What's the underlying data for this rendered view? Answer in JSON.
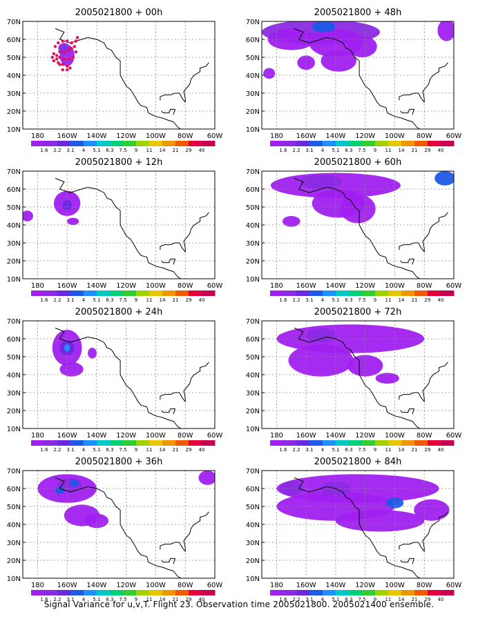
{
  "footer": "Signal Variance for u,v,T. Flight 23. Observation time 2005021800. 2005021400 ensemble.",
  "map": {
    "lat_labels": [
      "70N",
      "60N",
      "50N",
      "40N",
      "30N",
      "20N",
      "10N"
    ],
    "lon_labels": [
      "180",
      "160W",
      "140W",
      "120W",
      "100W",
      "80W",
      "60W"
    ],
    "lon_range": [
      -190,
      -60
    ],
    "lat_range": [
      10,
      70
    ]
  },
  "colorbar": {
    "labels": [
      "1.6",
      "2.2",
      "3.1",
      "4",
      "5.1",
      "6.3",
      "7.5",
      "9",
      "11",
      "14",
      "21",
      "29",
      "40"
    ],
    "colors": [
      "#a020f0",
      "#8a2be2",
      "#6a28e0",
      "#1e5ae6",
      "#1e90ff",
      "#00c8c8",
      "#00d078",
      "#32cd32",
      "#a0d200",
      "#e6c800",
      "#f09600",
      "#f05a00",
      "#e6003c",
      "#c80050"
    ]
  },
  "panels": [
    {
      "title": "2005021800 + 00h",
      "blobs": [
        {
          "lon": -160,
          "lat": 51,
          "rx": 5,
          "ry": 6,
          "c": 0
        },
        {
          "lon": -162,
          "lat": 55,
          "rx": 4,
          "ry": 3,
          "c": 1
        }
      ],
      "dots": [
        [
          -168,
          56
        ],
        [
          -166,
          58
        ],
        [
          -163,
          59
        ],
        [
          -160,
          59
        ],
        [
          -157,
          58
        ],
        [
          -155,
          56
        ],
        [
          -154,
          53
        ],
        [
          -156,
          50
        ],
        [
          -159,
          49
        ],
        [
          -162,
          49
        ],
        [
          -165,
          50
        ],
        [
          -167,
          51
        ],
        [
          -169,
          52
        ],
        [
          -170,
          50
        ],
        [
          -169,
          48
        ],
        [
          -166,
          47
        ],
        [
          -163,
          46
        ],
        [
          -160,
          45
        ],
        [
          -158,
          44
        ],
        [
          -160,
          43
        ],
        [
          -163,
          43
        ],
        [
          -165,
          46
        ],
        [
          -167,
          49
        ],
        [
          -165,
          53
        ],
        [
          -162,
          53
        ],
        [
          -159,
          54
        ],
        [
          -157,
          55
        ],
        [
          -154,
          59
        ],
        [
          -153,
          61
        ]
      ]
    },
    {
      "title": "2005021800 + 48h",
      "blobs": [
        {
          "lon": -150,
          "lat": 64,
          "rx": 40,
          "ry": 7,
          "c": 1
        },
        {
          "lon": -170,
          "lat": 60,
          "rx": 16,
          "ry": 6,
          "c": 0
        },
        {
          "lon": -140,
          "lat": 58,
          "rx": 18,
          "ry": 8,
          "c": 0
        },
        {
          "lon": -138,
          "lat": 48,
          "rx": 12,
          "ry": 6,
          "c": 0
        },
        {
          "lon": -160,
          "lat": 47,
          "rx": 6,
          "ry": 4,
          "c": 0
        },
        {
          "lon": -148,
          "lat": 67,
          "rx": 8,
          "ry": 3,
          "c": 3
        },
        {
          "lon": -122,
          "lat": 56,
          "rx": 10,
          "ry": 6,
          "c": 0
        },
        {
          "lon": -185,
          "lat": 41,
          "rx": 4,
          "ry": 3,
          "c": 0
        },
        {
          "lon": -65,
          "lat": 65,
          "rx": 6,
          "ry": 6,
          "c": 0
        }
      ],
      "dots": []
    },
    {
      "title": "2005021800 + 12h",
      "blobs": [
        {
          "lon": -160,
          "lat": 52,
          "rx": 9,
          "ry": 7,
          "c": 0
        },
        {
          "lon": -160,
          "lat": 51,
          "rx": 3,
          "ry": 3,
          "c": 2
        },
        {
          "lon": -156,
          "lat": 42,
          "rx": 4,
          "ry": 2,
          "c": 0
        },
        {
          "lon": -187,
          "lat": 45,
          "rx": 4,
          "ry": 3,
          "c": 0
        }
      ],
      "dots": []
    },
    {
      "title": "2005021800 + 60h",
      "blobs": [
        {
          "lon": -140,
          "lat": 62,
          "rx": 44,
          "ry": 7,
          "c": 0
        },
        {
          "lon": -150,
          "lat": 64,
          "rx": 14,
          "ry": 4,
          "c": 1
        },
        {
          "lon": -138,
          "lat": 52,
          "rx": 18,
          "ry": 8,
          "c": 0
        },
        {
          "lon": -125,
          "lat": 49,
          "rx": 12,
          "ry": 8,
          "c": 0
        },
        {
          "lon": -170,
          "lat": 42,
          "rx": 6,
          "ry": 3,
          "c": 0
        },
        {
          "lon": -66,
          "lat": 66,
          "rx": 7,
          "ry": 4,
          "c": 3
        }
      ],
      "dots": []
    },
    {
      "title": "2005021800 + 24h",
      "blobs": [
        {
          "lon": -160,
          "lat": 55,
          "rx": 10,
          "ry": 10,
          "c": 0
        },
        {
          "lon": -160,
          "lat": 55,
          "rx": 5,
          "ry": 4,
          "c": 2
        },
        {
          "lon": -160,
          "lat": 55,
          "rx": 2,
          "ry": 2,
          "c": 4
        },
        {
          "lon": -157,
          "lat": 43,
          "rx": 8,
          "ry": 4,
          "c": 0
        },
        {
          "lon": -143,
          "lat": 52,
          "rx": 3,
          "ry": 3,
          "c": 0
        }
      ],
      "dots": []
    },
    {
      "title": "2005021800 + 72h",
      "blobs": [
        {
          "lon": -130,
          "lat": 60,
          "rx": 50,
          "ry": 8,
          "c": 0
        },
        {
          "lon": -150,
          "lat": 48,
          "rx": 22,
          "ry": 9,
          "c": 0
        },
        {
          "lon": -120,
          "lat": 45,
          "rx": 12,
          "ry": 6,
          "c": 0
        },
        {
          "lon": -105,
          "lat": 38,
          "rx": 8,
          "ry": 3,
          "c": 0
        },
        {
          "lon": -150,
          "lat": 62,
          "rx": 10,
          "ry": 4,
          "c": 1
        }
      ],
      "dots": []
    },
    {
      "title": "2005021800 + 36h",
      "blobs": [
        {
          "lon": -160,
          "lat": 60,
          "rx": 20,
          "ry": 8,
          "c": 0
        },
        {
          "lon": -158,
          "lat": 62,
          "rx": 8,
          "ry": 4,
          "c": 1
        },
        {
          "lon": -155,
          "lat": 63,
          "rx": 3,
          "ry": 2,
          "c": 3
        },
        {
          "lon": -165,
          "lat": 59,
          "rx": 3,
          "ry": 2,
          "c": 3
        },
        {
          "lon": -150,
          "lat": 45,
          "rx": 12,
          "ry": 6,
          "c": 0
        },
        {
          "lon": -140,
          "lat": 42,
          "rx": 8,
          "ry": 4,
          "c": 0
        },
        {
          "lon": -65,
          "lat": 66,
          "rx": 6,
          "ry": 4,
          "c": 0
        }
      ],
      "dots": []
    },
    {
      "title": "2005021800 + 84h",
      "blobs": [
        {
          "lon": -125,
          "lat": 60,
          "rx": 55,
          "ry": 8,
          "c": 0
        },
        {
          "lon": -140,
          "lat": 50,
          "rx": 40,
          "ry": 8,
          "c": 0
        },
        {
          "lon": -110,
          "lat": 42,
          "rx": 30,
          "ry": 6,
          "c": 0
        },
        {
          "lon": -170,
          "lat": 60,
          "rx": 8,
          "ry": 4,
          "c": 1
        },
        {
          "lon": -100,
          "lat": 52,
          "rx": 6,
          "ry": 3,
          "c": 3
        },
        {
          "lon": -140,
          "lat": 60,
          "rx": 10,
          "ry": 4,
          "c": 1
        },
        {
          "lon": -75,
          "lat": 48,
          "rx": 12,
          "ry": 6,
          "c": 0
        }
      ],
      "dots": []
    }
  ]
}
